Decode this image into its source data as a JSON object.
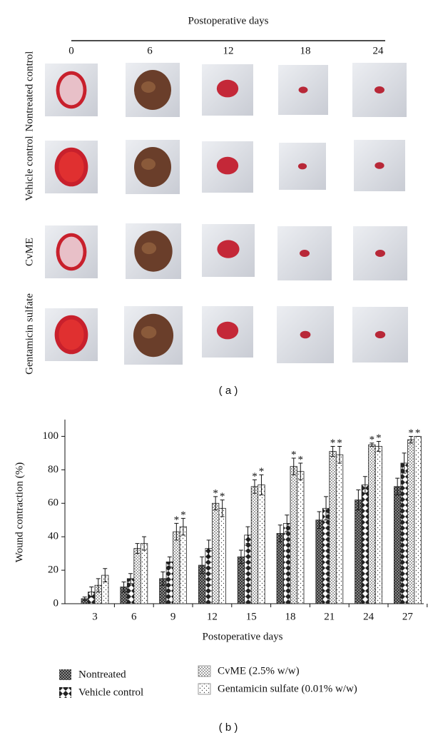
{
  "panel_a": {
    "title": "Postoperative days",
    "columns": [
      "0",
      "6",
      "12",
      "18",
      "24"
    ],
    "rows": [
      "Nontreated control",
      "Vehicle control",
      "CvME",
      "Gentamicin sulfate"
    ],
    "label": "( a )"
  },
  "chart_data": {
    "type": "bar",
    "xlabel": "Postoperative days",
    "ylabel": "Wound contraction (%)",
    "categories": [
      "3",
      "6",
      "9",
      "12",
      "15",
      "18",
      "21",
      "24",
      "27"
    ],
    "ylim": [
      0,
      110
    ],
    "yticks": [
      0,
      20,
      40,
      60,
      80,
      100
    ],
    "series": [
      {
        "name": "Nontreated",
        "values": [
          3,
          10,
          15,
          23,
          28,
          42,
          50,
          62,
          70
        ],
        "errors": [
          1,
          3,
          4,
          5,
          4,
          5,
          5,
          6,
          5
        ],
        "markers": [
          null,
          null,
          null,
          null,
          null,
          null,
          null,
          null,
          null
        ]
      },
      {
        "name": "Vehicle control",
        "values": [
          7,
          15,
          25,
          33,
          41,
          48,
          57,
          71,
          84
        ],
        "errors": [
          3,
          3,
          3,
          5,
          5,
          5,
          7,
          5,
          6
        ],
        "markers": [
          null,
          null,
          null,
          null,
          null,
          null,
          null,
          null,
          null
        ]
      },
      {
        "name": "CvME (2.5% w/w)",
        "values": [
          11,
          33,
          43,
          60,
          70,
          82,
          91,
          95,
          98
        ],
        "errors": [
          4,
          3,
          5,
          4,
          4,
          5,
          3,
          1,
          2
        ],
        "markers": [
          null,
          null,
          "*",
          "*",
          "*",
          "*",
          "*",
          "*",
          "*"
        ]
      },
      {
        "name": "Gentamicin sulfate (0.01% w/w)",
        "values": [
          17,
          36,
          46,
          57,
          71,
          79,
          89,
          94,
          100
        ],
        "errors": [
          4,
          4,
          5,
          5,
          6,
          5,
          5,
          3,
          0
        ],
        "markers": [
          null,
          null,
          "*",
          "*",
          "*",
          "*",
          "*",
          "*",
          "*"
        ]
      }
    ],
    "label": "( b )"
  }
}
